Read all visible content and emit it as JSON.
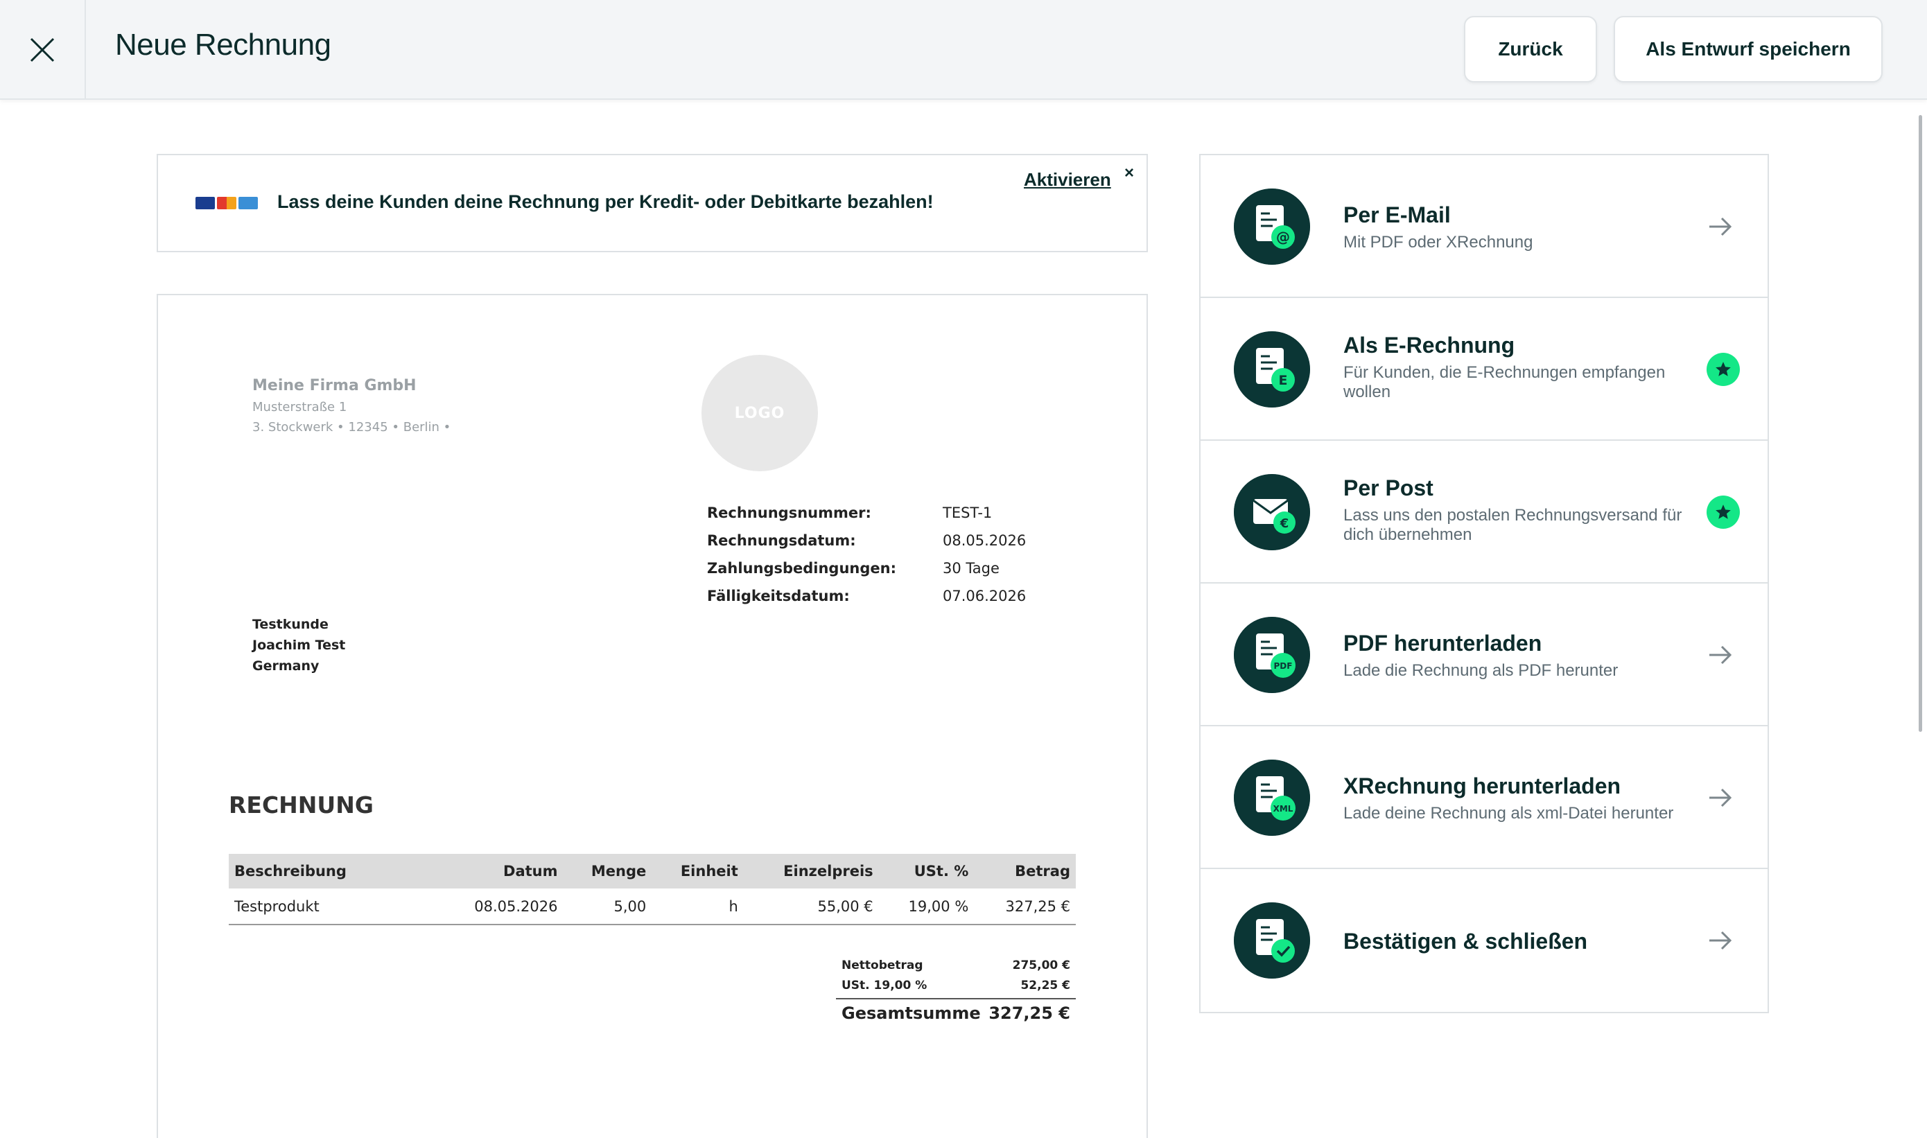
{
  "header": {
    "title": "Neue Rechnung",
    "back_label": "Zurück",
    "draft_label": "Als Entwurf speichern"
  },
  "banner": {
    "text": "Lass deine Kunden deine Rechnung per Kredit- oder Debitkarte bezahlen!",
    "link": "Aktivieren",
    "close": "×"
  },
  "invoice": {
    "seller": {
      "name": "Meine Firma GmbH",
      "street": "Musterstraße 1",
      "line2": "3. Stockwerk • 12345 • Berlin •"
    },
    "logo_text": "LOGO",
    "meta": [
      {
        "label": "Rechnungsnummer:",
        "value": "TEST-1"
      },
      {
        "label": "Rechnungsdatum:",
        "value": "08.05.2026"
      },
      {
        "label": "Zahlungsbedingungen:",
        "value": "30 Tage"
      },
      {
        "label": "Fälligkeitsdatum:",
        "value": "07.06.2026"
      }
    ],
    "customer": [
      "Testkunde",
      "Joachim Test",
      "Germany"
    ],
    "title": "RECHNUNG",
    "columns": [
      "Beschreibung",
      "Datum",
      "Menge",
      "Einheit",
      "Einzelpreis",
      "USt. %",
      "Betrag"
    ],
    "rows": [
      [
        "Testprodukt",
        "08.05.2026",
        "5,00",
        "h",
        "55,00 €",
        "19,00 %",
        "327,25 €"
      ]
    ],
    "totals": {
      "net_label": "Nettobetrag",
      "net_value": "275,00 €",
      "vat_label": "USt. 19,00 %",
      "vat_value": "52,25 €",
      "grand_label": "Gesamtsumme",
      "grand_value": "327,25 €"
    }
  },
  "actions": [
    {
      "title": "Per E-Mail",
      "subtitle": "Mit PDF oder XRechnung",
      "icon": "email-invoice-icon",
      "badge": "@",
      "marker": "arrow"
    },
    {
      "title": "Als E-Rechnung",
      "subtitle": "Für Kunden, die E-Rechnungen empfangen wollen",
      "icon": "e-invoice-icon",
      "badge": "E",
      "marker": "star"
    },
    {
      "title": "Per Post",
      "subtitle": "Lass uns den postalen Rechnungsversand für dich übernehmen",
      "icon": "envelope-icon",
      "badge": "€",
      "marker": "star"
    },
    {
      "title": "PDF herunterladen",
      "subtitle": "Lade die Rechnung als PDF herunter",
      "icon": "pdf-icon",
      "badge": "PDF",
      "marker": "arrow"
    },
    {
      "title": "XRechnung herunterladen",
      "subtitle": "Lade deine Rechnung als xml-Datei herunter",
      "icon": "xml-icon",
      "badge": "XML",
      "marker": "arrow"
    },
    {
      "title": "Bestätigen & schließen",
      "subtitle": "",
      "icon": "confirm-icon",
      "badge": "✓",
      "marker": "arrow"
    }
  ],
  "colors": {
    "primary": "#0b3635",
    "accent": "#14e787",
    "muted_text": "#5d6b73"
  }
}
